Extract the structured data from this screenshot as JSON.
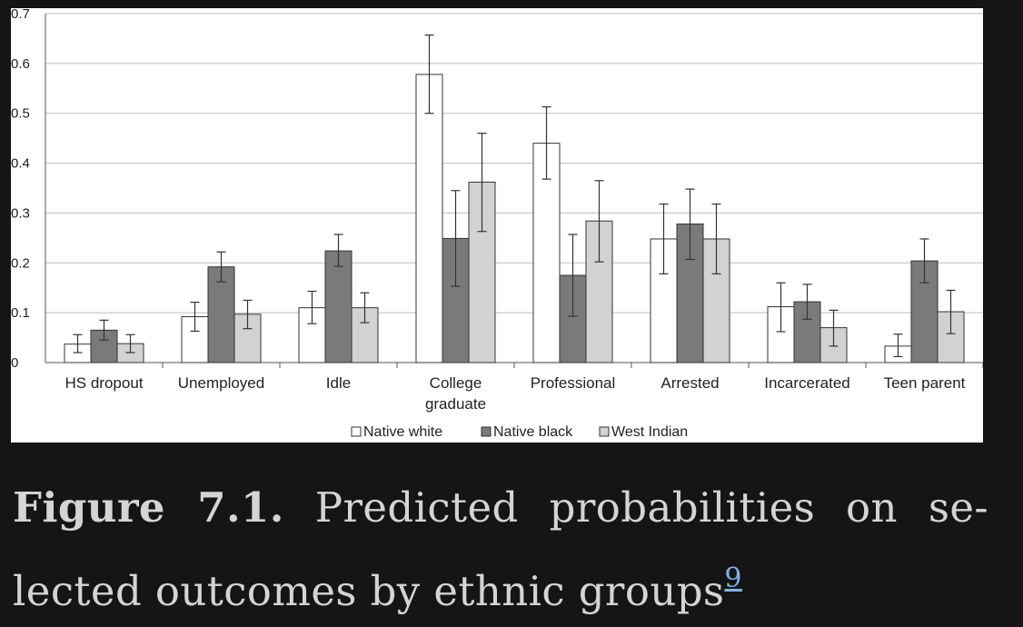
{
  "figure": {
    "label": "Figure 7.1.",
    "caption_line1": "Predicted probabilities on se-",
    "caption_line2": "lected outcomes by ethnic groups",
    "reference": "9"
  },
  "chart_data": {
    "type": "bar",
    "title": "",
    "xlabel": "",
    "ylabel": "",
    "ylim": [
      0,
      0.7
    ],
    "yticks": [
      "0",
      "0.1",
      "0.2",
      "0.3",
      "0.4",
      "0.5",
      "0.6",
      "0.7"
    ],
    "grid": true,
    "legend_position": "bottom",
    "categories": [
      "HS dropout",
      "Unemployed",
      "Idle",
      "College graduate",
      "Professional",
      "Arrested",
      "Incarcerated",
      "Teen parent"
    ],
    "category_lines": [
      [
        "HS dropout"
      ],
      [
        "Unemployed"
      ],
      [
        "Idle"
      ],
      [
        "College",
        "graduate"
      ],
      [
        "Professional"
      ],
      [
        "Arrested"
      ],
      [
        "Incarcerated"
      ],
      [
        "Teen parent"
      ]
    ],
    "series": [
      {
        "name": "Native white",
        "color": "#ffffff",
        "values": [
          0.037,
          0.092,
          0.11,
          0.578,
          0.44,
          0.248,
          0.112,
          0.033
        ],
        "err_low": [
          0.02,
          0.063,
          0.078,
          0.5,
          0.368,
          0.178,
          0.062,
          0.012
        ],
        "err_high": [
          0.056,
          0.121,
          0.143,
          0.657,
          0.513,
          0.318,
          0.16,
          0.057
        ]
      },
      {
        "name": "Native black",
        "color": "#7a7a7a",
        "values": [
          0.065,
          0.192,
          0.224,
          0.249,
          0.175,
          0.278,
          0.122,
          0.204
        ],
        "err_low": [
          0.045,
          0.162,
          0.193,
          0.153,
          0.093,
          0.207,
          0.087,
          0.16
        ],
        "err_high": [
          0.085,
          0.222,
          0.257,
          0.345,
          0.257,
          0.348,
          0.157,
          0.248
        ]
      },
      {
        "name": "West Indian",
        "color": "#d2d2d2",
        "values": [
          0.038,
          0.097,
          0.11,
          0.362,
          0.284,
          0.248,
          0.07,
          0.102
        ],
        "err_low": [
          0.02,
          0.068,
          0.08,
          0.263,
          0.202,
          0.178,
          0.033,
          0.058
        ],
        "err_high": [
          0.056,
          0.125,
          0.14,
          0.46,
          0.365,
          0.318,
          0.105,
          0.145
        ]
      }
    ]
  }
}
